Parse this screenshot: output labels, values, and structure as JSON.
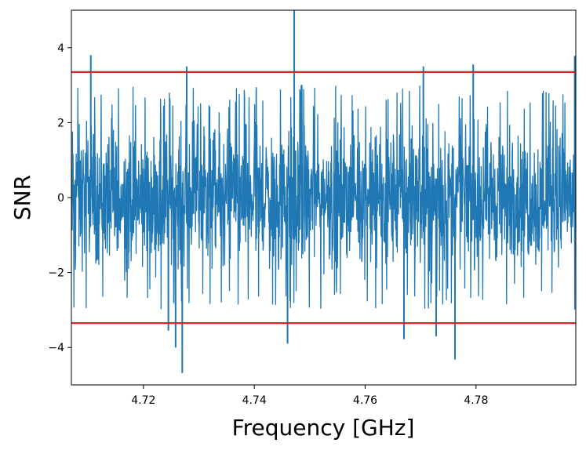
{
  "chart_data": {
    "type": "line",
    "xlabel": "Frequency [GHz]",
    "ylabel": "SNR",
    "xlim": [
      4.707,
      4.798
    ],
    "ylim": [
      -5,
      5
    ],
    "x_ticks": [
      4.72,
      4.74,
      4.76,
      4.78
    ],
    "x_tick_labels": [
      "4.72",
      "4.74",
      "4.76",
      "4.78"
    ],
    "y_ticks": [
      -4,
      -2,
      0,
      2,
      4
    ],
    "y_tick_labels": [
      "−4",
      "−2",
      "0",
      "2",
      "4"
    ],
    "grid": false,
    "series": [
      {
        "color": "#1f77b4",
        "description_values": {
          "noise_band_typical": [
            -2.5,
            2.5
          ],
          "spikes": [
            {
              "x": 4.7105,
              "y": 3.8
            },
            {
              "x": 4.7278,
              "y": 3.5
            },
            {
              "x": 4.7472,
              "y": 5.0
            },
            {
              "x": 4.7705,
              "y": 3.5
            },
            {
              "x": 4.7795,
              "y": 3.55
            },
            {
              "x": 4.7978,
              "y": 3.78
            },
            {
              "x": 4.7245,
              "y": -3.55
            },
            {
              "x": 4.7258,
              "y": -4.0
            },
            {
              "x": 4.727,
              "y": -4.68
            },
            {
              "x": 4.746,
              "y": -3.9
            },
            {
              "x": 4.767,
              "y": -3.78
            },
            {
              "x": 4.7728,
              "y": -3.7
            },
            {
              "x": 4.7762,
              "y": -4.32
            }
          ]
        }
      }
    ],
    "threshold_lines": [
      {
        "y": 3.35,
        "color": "#d62728"
      },
      {
        "y": -3.35,
        "color": "#d62728"
      }
    ]
  }
}
